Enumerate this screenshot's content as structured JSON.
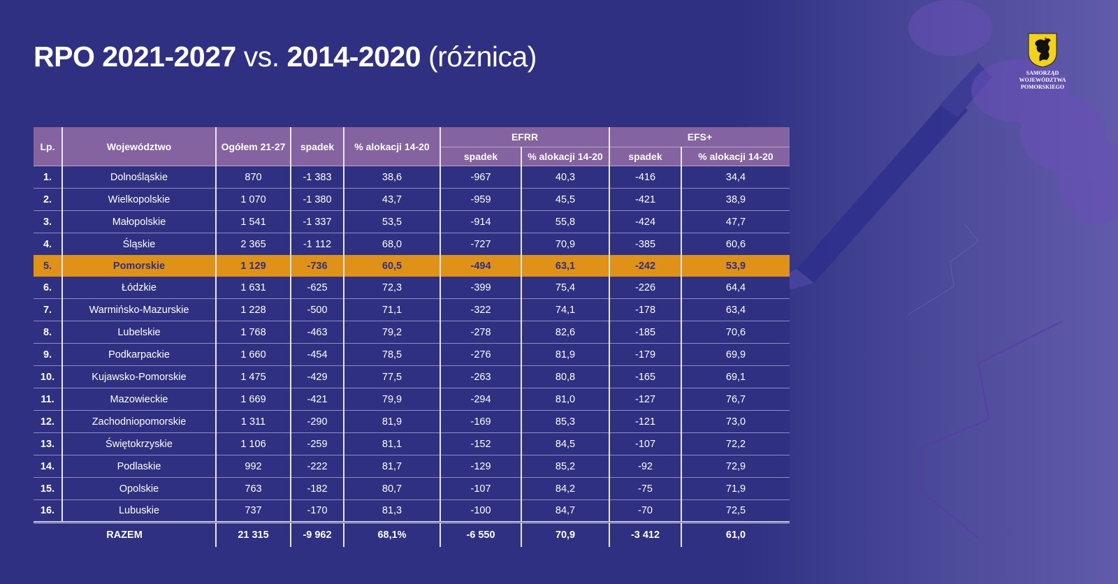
{
  "title": {
    "part1": "RPO 2021-2027",
    "part2": " vs. ",
    "part3": "2014-2020",
    "part4": " (różnica)"
  },
  "logo": {
    "line1": "SAMORZĄD",
    "line2": "WOJEWÓDZTWA POMORSKIEGO"
  },
  "colors": {
    "background": "#2f3082",
    "header": "#8563a0",
    "highlight": "#e09117"
  },
  "table": {
    "headers": {
      "lp": "Lp.",
      "region": "Województwo",
      "total": "Ogółem 21-27",
      "decline": "spadek",
      "pct": "% alokacji 14-20",
      "efrr": "EFRR",
      "efs": "EFS+",
      "efrr_decline": "spadek",
      "efrr_pct": "% alokacji 14-20",
      "efs_decline": "spadek",
      "efs_pct": "% alokacji 14-20"
    },
    "rows": [
      {
        "lp": "1.",
        "region": "Dolnośląskie",
        "total": "870",
        "decline": "-1 383",
        "pct": "38,6",
        "efrr_decline": "-967",
        "efrr_pct": "40,3",
        "efs_decline": "-416",
        "efs_pct": "34,4"
      },
      {
        "lp": "2.",
        "region": "Wielkopolskie",
        "total": "1 070",
        "decline": "-1 380",
        "pct": "43,7",
        "efrr_decline": "-959",
        "efrr_pct": "45,5",
        "efs_decline": "-421",
        "efs_pct": "38,9"
      },
      {
        "lp": "3.",
        "region": "Małopolskie",
        "total": "1 541",
        "decline": "-1 337",
        "pct": "53,5",
        "efrr_decline": "-914",
        "efrr_pct": "55,8",
        "efs_decline": "-424",
        "efs_pct": "47,7"
      },
      {
        "lp": "4.",
        "region": "Śląskie",
        "total": "2 365",
        "decline": "-1 112",
        "pct": "68,0",
        "efrr_decline": "-727",
        "efrr_pct": "70,9",
        "efs_decline": "-385",
        "efs_pct": "60,6"
      },
      {
        "lp": "5.",
        "region": "Pomorskie",
        "total": "1 129",
        "decline": "-736",
        "pct": "60,5",
        "efrr_decline": "-494",
        "efrr_pct": "63,1",
        "efs_decline": "-242",
        "efs_pct": "53,9",
        "highlighted": true
      },
      {
        "lp": "6.",
        "region": "Łódzkie",
        "total": "1 631",
        "decline": "-625",
        "pct": "72,3",
        "efrr_decline": "-399",
        "efrr_pct": "75,4",
        "efs_decline": "-226",
        "efs_pct": "64,4"
      },
      {
        "lp": "7.",
        "region": "Warmińsko-Mazurskie",
        "total": "1 228",
        "decline": "-500",
        "pct": "71,1",
        "efrr_decline": "-322",
        "efrr_pct": "74,1",
        "efs_decline": "-178",
        "efs_pct": "63,4"
      },
      {
        "lp": "8.",
        "region": "Lubelskie",
        "total": "1 768",
        "decline": "-463",
        "pct": "79,2",
        "efrr_decline": "-278",
        "efrr_pct": "82,6",
        "efs_decline": "-185",
        "efs_pct": "70,6"
      },
      {
        "lp": "9.",
        "region": "Podkarpackie",
        "total": "1 660",
        "decline": "-454",
        "pct": "78,5",
        "efrr_decline": "-276",
        "efrr_pct": "81,9",
        "efs_decline": "-179",
        "efs_pct": "69,9"
      },
      {
        "lp": "10.",
        "region": "Kujawsko-Pomorskie",
        "total": "1 475",
        "decline": "-429",
        "pct": "77,5",
        "efrr_decline": "-263",
        "efrr_pct": "80,8",
        "efs_decline": "-165",
        "efs_pct": "69,1"
      },
      {
        "lp": "11.",
        "region": "Mazowieckie",
        "total": "1 669",
        "decline": "-421",
        "pct": "79,9",
        "efrr_decline": "-294",
        "efrr_pct": "81,0",
        "efs_decline": "-127",
        "efs_pct": "76,7"
      },
      {
        "lp": "12.",
        "region": "Zachodniopomorskie",
        "total": "1 311",
        "decline": "-290",
        "pct": "81,9",
        "efrr_decline": "-169",
        "efrr_pct": "85,3",
        "efs_decline": "-121",
        "efs_pct": "73,0"
      },
      {
        "lp": "13.",
        "region": "Świętokrzyskie",
        "total": "1 106",
        "decline": "-259",
        "pct": "81,1",
        "efrr_decline": "-152",
        "efrr_pct": "84,5",
        "efs_decline": "-107",
        "efs_pct": "72,2"
      },
      {
        "lp": "14.",
        "region": "Podlaskie",
        "total": "992",
        "decline": "-222",
        "pct": "81,7",
        "efrr_decline": "-129",
        "efrr_pct": "85,2",
        "efs_decline": "-92",
        "efs_pct": "72,9"
      },
      {
        "lp": "15.",
        "region": "Opolskie",
        "total": "763",
        "decline": "-182",
        "pct": "80,7",
        "efrr_decline": "-107",
        "efrr_pct": "84,2",
        "efs_decline": "-75",
        "efs_pct": "71,9"
      },
      {
        "lp": "16.",
        "region": "Lubuskie",
        "total": "737",
        "decline": "-170",
        "pct": "81,3",
        "efrr_decline": "-100",
        "efrr_pct": "84,7",
        "efs_decline": "-70",
        "efs_pct": "72,5"
      }
    ],
    "totals": {
      "label": "RAZEM",
      "total": "21 315",
      "decline": "-9 962",
      "pct": "68,1%",
      "efrr_decline": "-6 550",
      "efrr_pct": "70,9",
      "efs_decline": "-3 412",
      "efs_pct": "61,0"
    }
  }
}
